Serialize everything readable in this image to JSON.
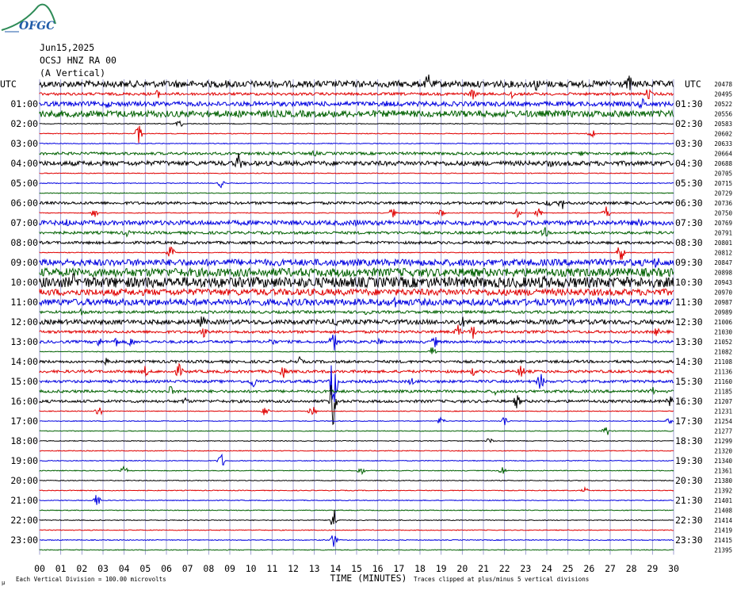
{
  "logo": {
    "text": "OFGC",
    "icon": "ofgc-logo-icon"
  },
  "header": {
    "date": "Jun15,2025",
    "station": "OCSJ HNZ RA 00",
    "component": "(A Vertical)"
  },
  "utc_left": "UTC",
  "utc_right": "UTC",
  "chart_data": {
    "type": "helicorder",
    "xlabel": "TIME (MINUTES)",
    "x_ticks": [
      "00",
      "01",
      "02",
      "03",
      "04",
      "05",
      "06",
      "07",
      "08",
      "09",
      "10",
      "11",
      "12",
      "13",
      "14",
      "15",
      "16",
      "17",
      "18",
      "19",
      "20",
      "21",
      "22",
      "23",
      "24",
      "25",
      "26",
      "27",
      "28",
      "29",
      "30"
    ],
    "xlim": [
      0,
      30
    ],
    "trace_colors": [
      "#000000",
      "#e00000",
      "#0000e0",
      "#006000"
    ],
    "left_labels": [
      "",
      "01:00",
      "02:00",
      "03:00",
      "04:00",
      "05:00",
      "06:00",
      "07:00",
      "08:00",
      "09:00",
      "10:00",
      "11:00",
      "12:00",
      "13:00",
      "14:00",
      "15:00",
      "16:00",
      "17:00",
      "18:00",
      "19:00",
      "20:00",
      "21:00",
      "22:00",
      "23:00"
    ],
    "right_labels": [
      "",
      "01:30",
      "02:30",
      "03:30",
      "04:30",
      "05:30",
      "06:30",
      "07:30",
      "08:30",
      "09:30",
      "10:30",
      "11:30",
      "12:30",
      "13:30",
      "14:30",
      "15:30",
      "16:30",
      "17:30",
      "18:30",
      "19:30",
      "20:30",
      "21:30",
      "22:30",
      "23:30"
    ],
    "trace_means": [
      "20478",
      "20495",
      "20522",
      "20556",
      "20583",
      "20602",
      "20633",
      "20664",
      "20688",
      "20705",
      "20715",
      "20729",
      "20736",
      "20750",
      "20769",
      "20791",
      "20801",
      "20812",
      "20847",
      "20898",
      "20943",
      "20970",
      "20987",
      "20989",
      "21006",
      "21030",
      "21052",
      "21082",
      "21108",
      "21136",
      "21160",
      "21185",
      "21207",
      "21231",
      "21254",
      "21277",
      "21299",
      "21320",
      "21340",
      "21361",
      "21380",
      "21392",
      "21401",
      "21408",
      "21414",
      "21419",
      "21415",
      "21395"
    ],
    "activity": [
      3,
      1,
      2,
      3,
      0,
      0,
      0,
      1,
      2,
      0,
      0,
      0,
      1,
      0,
      2,
      1,
      1,
      0,
      3,
      4,
      5,
      3,
      3,
      1,
      2,
      1,
      1,
      0,
      1,
      1,
      1,
      1,
      1,
      0,
      0,
      0,
      0,
      0,
      0,
      0,
      0,
      0,
      0,
      0,
      0,
      0,
      0,
      0
    ],
    "events": [
      {
        "row": 0,
        "min": 18.4,
        "amp": 16
      },
      {
        "row": 0,
        "min": 23.5,
        "amp": 10
      },
      {
        "row": 0,
        "min": 27.9,
        "amp": 12
      },
      {
        "row": 0,
        "min": 6.5,
        "amp": 6
      },
      {
        "row": 0,
        "min": 8.8,
        "amp": 6
      },
      {
        "row": 1,
        "min": 5.6,
        "amp": 6
      },
      {
        "row": 1,
        "min": 20.5,
        "amp": 8
      },
      {
        "row": 1,
        "min": 22.3,
        "amp": 8
      },
      {
        "row": 1,
        "min": 28.8,
        "amp": 8
      },
      {
        "row": 2,
        "min": 3.2,
        "amp": 6
      },
      {
        "row": 2,
        "min": 16.4,
        "amp": 5
      },
      {
        "row": 2,
        "min": 28.5,
        "amp": 9
      },
      {
        "row": 4,
        "min": 6.6,
        "amp": 6
      },
      {
        "row": 5,
        "min": 4.7,
        "amp": 14
      },
      {
        "row": 5,
        "min": 26.1,
        "amp": 8
      },
      {
        "row": 7,
        "min": 13.0,
        "amp": 5
      },
      {
        "row": 7,
        "min": 25.6,
        "amp": 5
      },
      {
        "row": 8,
        "min": 9.4,
        "amp": 14
      },
      {
        "row": 8,
        "min": 5.8,
        "amp": 5
      },
      {
        "row": 8,
        "min": 24.1,
        "amp": 7
      },
      {
        "row": 10,
        "min": 8.6,
        "amp": 6
      },
      {
        "row": 12,
        "min": 24.7,
        "amp": 10
      },
      {
        "row": 12,
        "min": 24.1,
        "amp": 6
      },
      {
        "row": 13,
        "min": 2.6,
        "amp": 7
      },
      {
        "row": 13,
        "min": 16.7,
        "amp": 7
      },
      {
        "row": 13,
        "min": 19.0,
        "amp": 6
      },
      {
        "row": 13,
        "min": 22.6,
        "amp": 6
      },
      {
        "row": 13,
        "min": 23.6,
        "amp": 7
      },
      {
        "row": 13,
        "min": 26.8,
        "amp": 10
      },
      {
        "row": 14,
        "min": 1.3,
        "amp": 7
      },
      {
        "row": 14,
        "min": 15.0,
        "amp": 6
      },
      {
        "row": 14,
        "min": 28.4,
        "amp": 7
      },
      {
        "row": 15,
        "min": 4.1,
        "amp": 6
      },
      {
        "row": 15,
        "min": 23.9,
        "amp": 8
      },
      {
        "row": 17,
        "min": 6.2,
        "amp": 10
      },
      {
        "row": 17,
        "min": 27.5,
        "amp": 14
      },
      {
        "row": 18,
        "min": 29.2,
        "amp": 10
      },
      {
        "row": 19,
        "min": 17.3,
        "amp": 6
      },
      {
        "row": 20,
        "min": 1.6,
        "amp": 12
      },
      {
        "row": 20,
        "min": 23.8,
        "amp": 14
      },
      {
        "row": 21,
        "min": 23.5,
        "amp": 8
      },
      {
        "row": 22,
        "min": 11.8,
        "amp": 7
      },
      {
        "row": 22,
        "min": 16.8,
        "amp": 10
      },
      {
        "row": 22,
        "min": 26.5,
        "amp": 8
      },
      {
        "row": 23,
        "min": 2.0,
        "amp": 6
      },
      {
        "row": 23,
        "min": 15.5,
        "amp": 6
      },
      {
        "row": 24,
        "min": 7.7,
        "amp": 10
      },
      {
        "row": 24,
        "min": 14.0,
        "amp": 8
      },
      {
        "row": 24,
        "min": 20.0,
        "amp": 8
      },
      {
        "row": 25,
        "min": 7.8,
        "amp": 8
      },
      {
        "row": 25,
        "min": 19.8,
        "amp": 10
      },
      {
        "row": 25,
        "min": 20.5,
        "amp": 10
      },
      {
        "row": 25,
        "min": 29.2,
        "amp": 6
      },
      {
        "row": 26,
        "min": 2.8,
        "amp": 8
      },
      {
        "row": 26,
        "min": 3.6,
        "amp": 8
      },
      {
        "row": 26,
        "min": 4.3,
        "amp": 8
      },
      {
        "row": 26,
        "min": 11.0,
        "amp": 6
      },
      {
        "row": 26,
        "min": 13.9,
        "amp": 14
      },
      {
        "row": 26,
        "min": 16.1,
        "amp": 6
      },
      {
        "row": 26,
        "min": 18.7,
        "amp": 8
      },
      {
        "row": 27,
        "min": 18.6,
        "amp": 8
      },
      {
        "row": 28,
        "min": 3.2,
        "amp": 6
      },
      {
        "row": 28,
        "min": 12.3,
        "amp": 6
      },
      {
        "row": 29,
        "min": 5.0,
        "amp": 8
      },
      {
        "row": 29,
        "min": 6.6,
        "amp": 10
      },
      {
        "row": 29,
        "min": 11.5,
        "amp": 10
      },
      {
        "row": 29,
        "min": 20.5,
        "amp": 6
      },
      {
        "row": 29,
        "min": 22.8,
        "amp": 10
      },
      {
        "row": 30,
        "min": 10.1,
        "amp": 10
      },
      {
        "row": 30,
        "min": 13.9,
        "amp": 40
      },
      {
        "row": 30,
        "min": 17.6,
        "amp": 6
      },
      {
        "row": 30,
        "min": 23.7,
        "amp": 12
      },
      {
        "row": 31,
        "min": 6.2,
        "amp": 8
      },
      {
        "row": 31,
        "min": 21.6,
        "amp": 6
      },
      {
        "row": 31,
        "min": 29.0,
        "amp": 6
      },
      {
        "row": 32,
        "min": 6.9,
        "amp": 6
      },
      {
        "row": 32,
        "min": 13.9,
        "amp": 36
      },
      {
        "row": 32,
        "min": 22.6,
        "amp": 10
      },
      {
        "row": 32,
        "min": 29.8,
        "amp": 8
      },
      {
        "row": 33,
        "min": 2.8,
        "amp": 8
      },
      {
        "row": 33,
        "min": 10.7,
        "amp": 8
      },
      {
        "row": 33,
        "min": 12.9,
        "amp": 10
      },
      {
        "row": 34,
        "min": 19.0,
        "amp": 6
      },
      {
        "row": 34,
        "min": 22.0,
        "amp": 8
      },
      {
        "row": 34,
        "min": 29.8,
        "amp": 5
      },
      {
        "row": 35,
        "min": 26.8,
        "amp": 8
      },
      {
        "row": 36,
        "min": 21.3,
        "amp": 5
      },
      {
        "row": 38,
        "min": 8.6,
        "amp": 10
      },
      {
        "row": 39,
        "min": 4.0,
        "amp": 6
      },
      {
        "row": 39,
        "min": 15.2,
        "amp": 6
      },
      {
        "row": 39,
        "min": 21.9,
        "amp": 6
      },
      {
        "row": 41,
        "min": 25.8,
        "amp": 4
      },
      {
        "row": 42,
        "min": 2.7,
        "amp": 8
      },
      {
        "row": 44,
        "min": 13.9,
        "amp": 18
      },
      {
        "row": 46,
        "min": 13.9,
        "amp": 10
      }
    ]
  },
  "footer": {
    "scale_note": "Each Vertical Division =  100.00 microvolts",
    "clip_note": "Traces clipped at plus/minus 5 vertical divisions",
    "corner_mark": "μ"
  }
}
